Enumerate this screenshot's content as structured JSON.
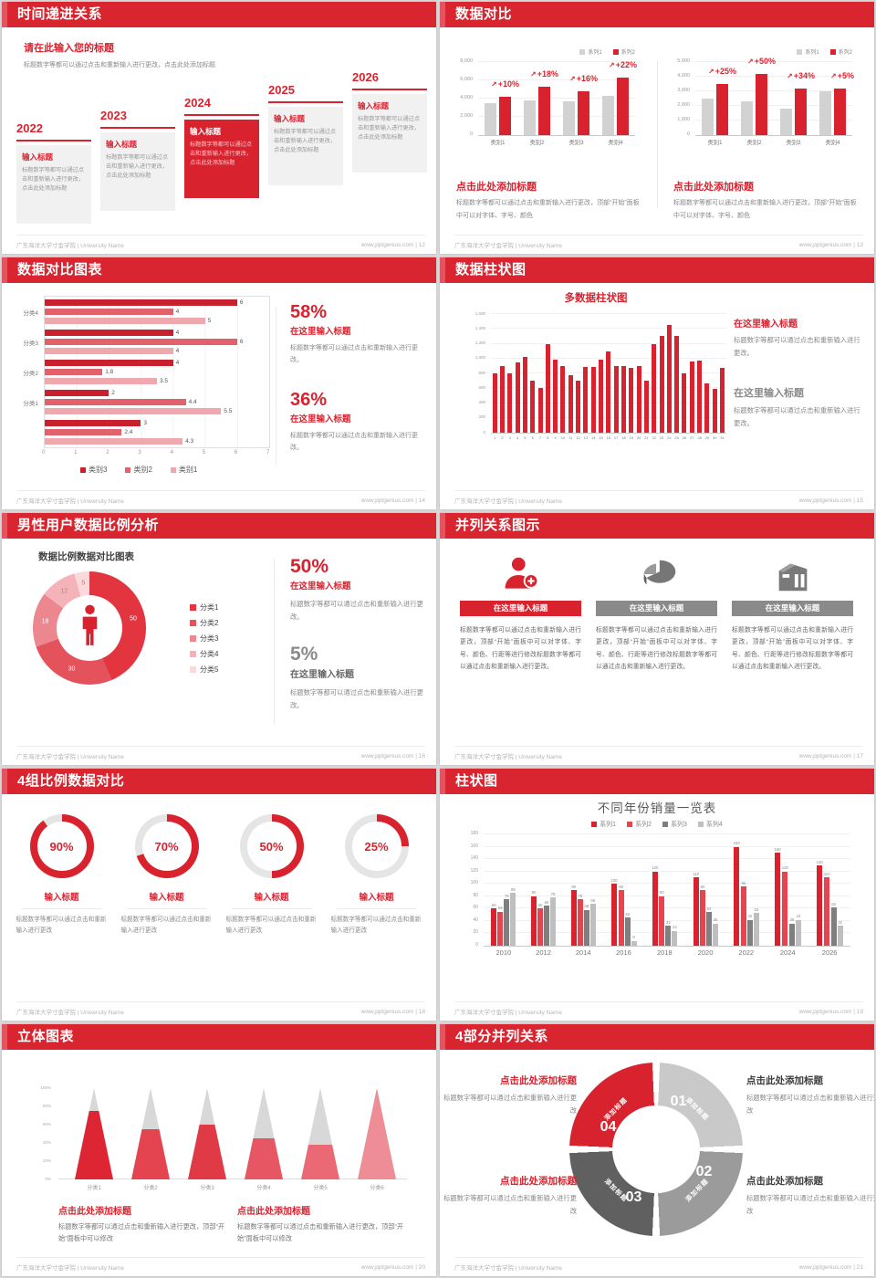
{
  "footer": {
    "left": "广东海洋大学寸金学院 | University Name",
    "site": "www.pptgenius.com"
  },
  "colors": {
    "accent": "#d8232f",
    "gray_bar": "#d2d2d2",
    "dark_gray": "#606060",
    "mid_gray": "#9b9b9b",
    "light_gray": "#c9c9c9"
  },
  "slides": [
    {
      "title": "时间递进关系",
      "page": "12",
      "intro_title": "请在此输入您的标题",
      "intro_body": "标题数字等都可以通过点击和重新输入进行更改，点击此处添加标题",
      "items": [
        {
          "year": "2022",
          "title": "输入标题",
          "body": "标题数字等都可以通过点击和重新输入进行更改，点击此处添加标题",
          "highlight": false
        },
        {
          "year": "2023",
          "title": "输入标题",
          "body": "标题数字等都可以通过点击和重新输入进行更改，点击此处添加标题",
          "highlight": false
        },
        {
          "year": "2024",
          "title": "输入标题",
          "body": "标题数字等都可以通过点击和重新输入进行更改，点击此处添加标题",
          "highlight": true
        },
        {
          "year": "2025",
          "title": "输入标题",
          "body": "标题数字等都可以通过点击和重新输入进行更改，点击此处添加标题",
          "highlight": false
        },
        {
          "year": "2026",
          "title": "输入标题",
          "body": "标题数字等都可以通过点击和重新输入进行更改，点击此处添加标题",
          "highlight": false
        }
      ]
    },
    {
      "title": "数据对比",
      "page": "13",
      "left_heading": "点击此处添加标题",
      "left_body": "标题数字等都可以通过点击和重新输入进行更改，顶部“开始”面板中可以对字体、字号、颜色",
      "right_heading": "点击此处添加标题",
      "right_body": "标题数字等都可以通过点击和重新输入进行更改，顶部“开始”面板中可以对字体、字号、颜色"
    },
    {
      "title": "数据对比图表",
      "page": "14",
      "stats": [
        {
          "value": "58%",
          "heading": "在这里输入标题",
          "body": "标题数字等都可以通过点击和重新输入进行更改。"
        },
        {
          "value": "36%",
          "heading": "在这里输入标题",
          "body": "标题数字等都可以通过点击和重新输入进行更改。"
        }
      ]
    },
    {
      "title": "数据柱状图",
      "page": "15",
      "chart_title": "多数据柱状图",
      "blocks": [
        {
          "heading": "在这里输入标题",
          "body": "标题数字等都可以通过点击和重新输入进行更改。"
        },
        {
          "heading": "在这里输入标题",
          "body": "标题数字等都可以通过点击和重新输入进行更改。"
        }
      ]
    },
    {
      "title": "男性用户数据比例分析",
      "page": "16",
      "chart_title": "数据比例数据对比图表",
      "stats": [
        {
          "value": "50%",
          "heading": "在这里输入标题",
          "body": "标题数字等都可以通过点击和重新输入进行更改。"
        },
        {
          "value": "5%",
          "heading": "在这里输入标题",
          "body": "标题数字等都可以通过点击和重新输入进行更改。"
        }
      ]
    },
    {
      "title": "并列关系图示",
      "page": "17",
      "columns": [
        {
          "icon": "person-add-icon",
          "heading": "在这里输入标题",
          "accent": true,
          "body": "标题数字等都可以通过点击和重新输入进行更改，顶部“开始”面板中可以对字体、字号、颜色、行距等进行修改标题数字等都可以通过点击和重新输入进行更改。"
        },
        {
          "icon": "pie-3d-icon",
          "heading": "在这里输入标题",
          "accent": false,
          "body": "标题数字等都可以通过点击和重新输入进行更改，顶部“开始”面板中可以对字体、字号、颜色、行距等进行修改标题数字等都可以通过点击和重新输入进行更改。"
        },
        {
          "icon": "building-icon",
          "heading": "在这里输入标题",
          "accent": false,
          "body": "标题数字等都可以通过点击和重新输入进行更改，顶部“开始”面板中可以对字体、字号、颜色、行距等进行修改标题数字等都可以通过点击和重新输入进行更改。"
        }
      ]
    },
    {
      "title": "4组比例数据对比",
      "page": "18",
      "rings": [
        {
          "percent": 90,
          "label": "90%",
          "heading": "输入标题",
          "body": "标题数字等都可以通过点击和重新输入进行更改"
        },
        {
          "percent": 70,
          "label": "70%",
          "heading": "输入标题",
          "body": "标题数字等都可以通过点击和重新输入进行更改"
        },
        {
          "percent": 50,
          "label": "50%",
          "heading": "输入标题",
          "body": "标题数字等都可以通过点击和重新输入进行更改"
        },
        {
          "percent": 25,
          "label": "25%",
          "heading": "输入标题",
          "body": "标题数字等都可以通过点击和重新输入进行更改"
        }
      ]
    },
    {
      "title": "柱状图",
      "page": "19",
      "chart_title": "不同年份销量一览表"
    },
    {
      "title": "立体图表",
      "page": "20",
      "blocks": [
        {
          "heading": "点击此处添加标题",
          "body": "标题数字等都可以通过点击和重新输入进行更改，顶部“开始”面板中可以修改"
        },
        {
          "heading": "点击此处添加标题",
          "body": "标题数字等都可以通过点击和重新输入进行更改，顶部“开始”面板中可以修改"
        }
      ]
    },
    {
      "title": "4部分并列关系",
      "page": "21",
      "segments": [
        {
          "num": "01",
          "label": "添加标题",
          "color": "#c9c9c9"
        },
        {
          "num": "02",
          "label": "添加标题",
          "color": "#9b9b9b"
        },
        {
          "num": "03",
          "label": "添加标题",
          "color": "#606060"
        },
        {
          "num": "04",
          "label": "添加标题",
          "color": "#d8232f"
        }
      ],
      "blocks": [
        {
          "heading": "点击此处添加标题",
          "body": "标题数字等都可以通过点击和重新输入进行更改",
          "accent": true
        },
        {
          "heading": "点击此处添加标题",
          "body": "标题数字等都可以通过点击和重新输入进行更改",
          "accent": false
        },
        {
          "heading": "点击此处添加标题",
          "body": "标题数字等都可以通过点击和重新输入进行更改",
          "accent": true
        },
        {
          "heading": "点击此处添加标题",
          "body": "标题数字等都可以通过点击和重新输入进行更改",
          "accent": false
        }
      ]
    }
  ],
  "chart_data": [
    {
      "id": "compare-left",
      "type": "bar",
      "categories": [
        "类别1",
        "类别2",
        "类别3",
        "类别4"
      ],
      "series": [
        {
          "name": "系列1",
          "color": "#d2d2d2",
          "values": [
            3500,
            3800,
            3700,
            4300
          ]
        },
        {
          "name": "系列2",
          "color": "#d8232f",
          "values": [
            4200,
            5300,
            4800,
            6300
          ]
        }
      ],
      "growth_labels": [
        "+10%",
        "+18%",
        "+16%",
        "+22%"
      ],
      "ylim": [
        0,
        8000
      ],
      "yticks": [
        0,
        2000,
        4000,
        6000,
        8000
      ],
      "legend_position": "top-right",
      "grid": true
    },
    {
      "id": "compare-right",
      "type": "bar",
      "categories": [
        "类别1",
        "类别2",
        "类别3",
        "类别4"
      ],
      "series": [
        {
          "name": "系列1",
          "color": "#d2d2d2",
          "values": [
            2500,
            2300,
            1800,
            3000
          ]
        },
        {
          "name": "系列2",
          "color": "#d8232f",
          "values": [
            3500,
            4200,
            3200,
            3200
          ]
        }
      ],
      "growth_labels": [
        "+25%",
        "+50%",
        "+34%",
        "+5%"
      ],
      "ylim": [
        0,
        5000
      ],
      "yticks": [
        0,
        1000,
        2000,
        3000,
        4000,
        5000
      ],
      "legend_position": "top-right",
      "grid": true
    },
    {
      "id": "comparison-hbar",
      "type": "bar-horizontal",
      "groups": [
        "分类4",
        "分类3",
        "分类2",
        "分类1",
        ""
      ],
      "series": [
        {
          "name": "类别3",
          "color": "#c9202d",
          "values": [
            6,
            4,
            4,
            2,
            3
          ]
        },
        {
          "name": "类别2",
          "color": "#e2626c",
          "values": [
            4,
            6,
            1.8,
            4.4,
            2.4
          ]
        },
        {
          "name": "类别1",
          "color": "#efa8ae",
          "values": [
            5,
            4,
            3.5,
            5.5,
            4.3
          ]
        }
      ],
      "xlim": [
        0,
        7
      ],
      "xticks": [
        0,
        1,
        2,
        3,
        4,
        5,
        6,
        7
      ],
      "legend_position": "bottom",
      "value_labels": true
    },
    {
      "id": "multi-column",
      "type": "bar",
      "title": "多数据柱状图",
      "color": "#d8232f",
      "categories": [
        "1",
        "2",
        "3",
        "4",
        "5",
        "6",
        "7",
        "8",
        "9",
        "10",
        "11",
        "12",
        "13",
        "14",
        "15",
        "16",
        "17",
        "18",
        "19",
        "20",
        "21",
        "22",
        "23",
        "24",
        "25",
        "26",
        "27",
        "28",
        "29",
        "30",
        "31"
      ],
      "values": [
        800,
        900,
        800,
        950,
        1020,
        700,
        600,
        1200,
        980,
        900,
        780,
        700,
        890,
        890,
        990,
        1100,
        900,
        900,
        880,
        900,
        700,
        1200,
        1300,
        1450,
        1300,
        800,
        960,
        970,
        660,
        590,
        870
      ],
      "ylim": [
        0,
        1600
      ],
      "yticks": [
        0,
        200,
        400,
        600,
        800,
        1000,
        1200,
        1400,
        1600
      ],
      "grid": true
    },
    {
      "id": "male-ratio-donut",
      "type": "pie",
      "title": "数据比例数据对比图表",
      "labels": [
        "分类1",
        "分类2",
        "分类3",
        "分类4",
        "分类5"
      ],
      "values": [
        50,
        30,
        18,
        12,
        5
      ],
      "colors": [
        "#e23540",
        "#e4525c",
        "#ec8790",
        "#f3b3b8",
        "#f9d9dc"
      ],
      "legend_position": "right"
    },
    {
      "id": "yearly-sales",
      "type": "bar",
      "title": "不同年份销量一览表",
      "categories": [
        "2010",
        "2012",
        "2014",
        "2016",
        "2018",
        "2020",
        "2022",
        "2024",
        "2026"
      ],
      "series": [
        {
          "name": "系列1",
          "color": "#d8232f",
          "values": [
            60,
            80,
            90,
            100,
            120,
            110,
            160,
            150,
            130
          ]
        },
        {
          "name": "系列2",
          "color": "#e64550",
          "values": [
            55,
            60,
            75,
            90,
            80,
            90,
            96,
            120,
            110
          ]
        },
        {
          "name": "系列3",
          "color": "#7f7f7f",
          "values": [
            75,
            65,
            58,
            46,
            32,
            54,
            42,
            36,
            62
          ]
        },
        {
          "name": "系列4",
          "color": "#bfbfbf",
          "values": [
            85,
            78,
            68,
            8,
            24,
            36,
            53,
            42,
            32
          ]
        }
      ],
      "ylim": [
        0,
        180
      ],
      "yticks": [
        0,
        20,
        40,
        60,
        80,
        100,
        120,
        140,
        160,
        180
      ],
      "legend_position": "top",
      "value_labels": true,
      "grid": true
    },
    {
      "id": "cone-chart",
      "type": "bar",
      "unit": "%",
      "categories": [
        "分类1",
        "分类2",
        "分类3",
        "分类4",
        "分类5",
        "分类6"
      ],
      "values": [
        75,
        55,
        60,
        45,
        38,
        100
      ],
      "fill_colors": [
        "#dd2534",
        "#e34450",
        "#e13a47",
        "#e75663",
        "#ea6974",
        "#ee8d96"
      ],
      "ylim": [
        0,
        100
      ],
      "yticks": [
        0,
        20,
        40,
        60,
        80,
        100
      ]
    }
  ]
}
